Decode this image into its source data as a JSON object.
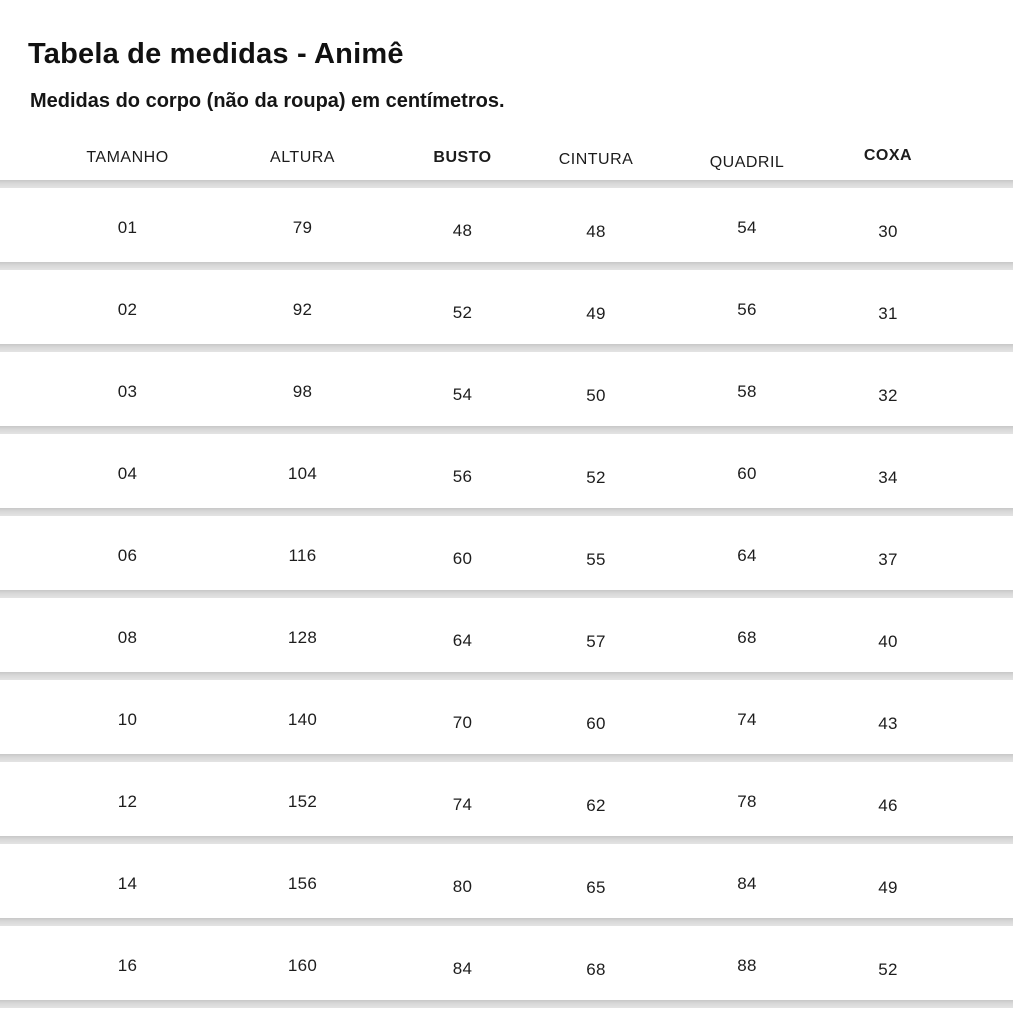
{
  "page": {
    "title": "Tabela de medidas - Animê",
    "subtitle": "Medidas do corpo (não da roupa) em centímetros."
  },
  "chart_data": {
    "type": "table",
    "title": "Tabela de medidas - Animê",
    "subtitle": "Medidas do corpo (não da roupa) em centímetros.",
    "unit": "centímetros",
    "columns": [
      "TAMANHO",
      "ALTURA",
      "BUSTO",
      "CINTURA",
      "QUADRIL",
      "COXA"
    ],
    "emphasized_columns": [
      "BUSTO",
      "COXA"
    ],
    "rows": [
      [
        "01",
        "79",
        "48",
        "48",
        "54",
        "30"
      ],
      [
        "02",
        "92",
        "52",
        "49",
        "56",
        "31"
      ],
      [
        "03",
        "98",
        "54",
        "50",
        "58",
        "32"
      ],
      [
        "04",
        "104",
        "56",
        "52",
        "60",
        "34"
      ],
      [
        "06",
        "116",
        "60",
        "55",
        "64",
        "37"
      ],
      [
        "08",
        "128",
        "64",
        "57",
        "68",
        "40"
      ],
      [
        "10",
        "140",
        "70",
        "60",
        "74",
        "43"
      ],
      [
        "12",
        "152",
        "74",
        "62",
        "78",
        "46"
      ],
      [
        "14",
        "156",
        "80",
        "65",
        "84",
        "49"
      ],
      [
        "16",
        "160",
        "84",
        "68",
        "88",
        "52"
      ]
    ]
  },
  "colors": {
    "background": "#ffffff",
    "text": "#1b1b1b",
    "separator": "#d9d9d9"
  }
}
